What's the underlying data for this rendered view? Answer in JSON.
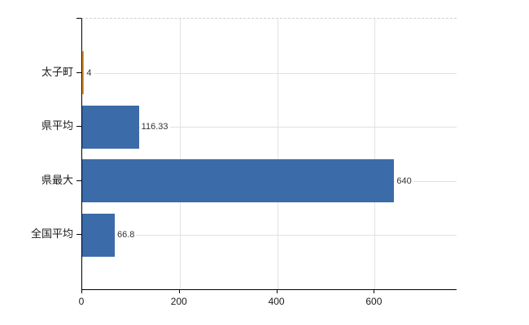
{
  "chart_data": {
    "type": "bar",
    "orientation": "horizontal",
    "title": "",
    "xlabel": "",
    "ylabel": "",
    "categories": [
      "太子町",
      "県平均",
      "県最大",
      "全国平均"
    ],
    "values": [
      4,
      116.33,
      640,
      66.8
    ],
    "value_labels": [
      "4",
      "116.33",
      "640",
      "66.8"
    ],
    "x_ticks": [
      {
        "value": 0,
        "label": "0"
      },
      {
        "value": 200,
        "label": "200"
      },
      {
        "value": 400,
        "label": "400"
      },
      {
        "value": 600,
        "label": "600"
      }
    ],
    "xlim": [
      0,
      768
    ],
    "grid": true,
    "legend": "none",
    "highlight_index": 0,
    "colors": {
      "bar_default": "#3b6ba8",
      "bar_highlight": "#e89632",
      "hgrid": "#dce4db",
      "vgrid": "#e3e3e3",
      "axis": "#000000",
      "top_border": "#cfcfcf",
      "value_text": "#333333",
      "label_text": "#1a1a1a"
    }
  }
}
